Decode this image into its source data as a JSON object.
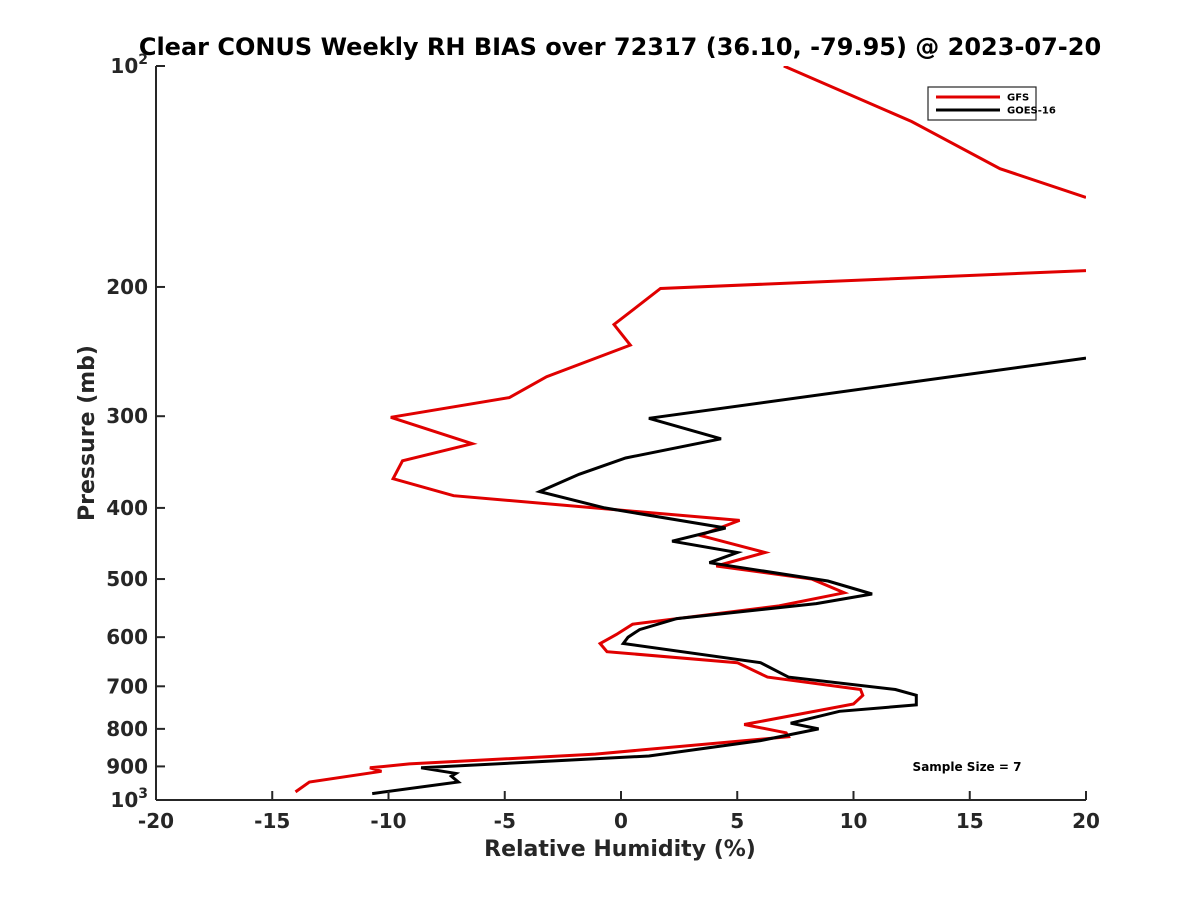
{
  "chart_data": {
    "type": "line",
    "title": "Clear CONUS Weekly RH BIAS over 72317 (36.10, -79.95) @ 2023-07-20",
    "xlabel": "Relative Humidity (%)",
    "ylabel": "Pressure (mb)",
    "xlim": [
      -20,
      20
    ],
    "ylim": [
      100,
      1000
    ],
    "y_scale": "log",
    "y_reversed": true,
    "grid": false,
    "legend_position": "top-right",
    "xticks": [
      "-20",
      "-15",
      "-10",
      "-5",
      "0",
      "5",
      "10",
      "15",
      "20"
    ],
    "yticks": [
      {
        "value": 100,
        "base": "10",
        "exp": "2"
      },
      {
        "value": 200,
        "label": "200"
      },
      {
        "value": 300,
        "label": "300"
      },
      {
        "value": 400,
        "label": "400"
      },
      {
        "value": 500,
        "label": "500"
      },
      {
        "value": 600,
        "label": "600"
      },
      {
        "value": 700,
        "label": "700"
      },
      {
        "value": 800,
        "label": "800"
      },
      {
        "value": 900,
        "label": "900"
      },
      {
        "value": 1000,
        "base": "10",
        "exp": "3"
      }
    ],
    "annotation": "Sample Size = 7",
    "series": [
      {
        "name": "GFS",
        "color": "#e00000",
        "x": [
          7.0,
          12.5,
          16.3,
          20.0,
          null,
          20.0,
          1.7,
          -0.3,
          0.4,
          -3.2,
          -4.8,
          -9.9,
          -6.4,
          -9.4,
          -9.8,
          -7.2,
          5.1,
          3.4,
          6.2,
          4.1,
          8.2,
          9.6,
          6.8,
          0.5,
          -0.2,
          -0.9,
          -0.6,
          5.0,
          6.3,
          10.3,
          10.4,
          10.0,
          5.3,
          7.1,
          7.2,
          -1.1,
          -9.1,
          -10.8,
          -10.3,
          -13.4,
          -14.0
        ],
        "y": [
          100,
          119,
          138,
          151,
          null,
          190,
          201,
          225,
          240,
          265,
          283,
          301,
          327,
          345,
          365,
          385,
          416,
          436,
          460,
          480,
          500,
          522,
          544,
          576,
          595,
          612,
          628,
          650,
          680,
          707,
          720,
          740,
          789,
          810,
          820,
          866,
          893,
          904,
          914,
          945,
          975
        ]
      },
      {
        "name": "GOES-16",
        "color": "#000000",
        "x": [
          20.0,
          1.2,
          4.3,
          0.2,
          -1.8,
          -3.5,
          -0.7,
          4.5,
          2.2,
          5.0,
          3.8,
          8.9,
          10.8,
          8.4,
          2.4,
          0.8,
          0.3,
          0.1,
          6.0,
          7.2,
          11.8,
          12.7,
          12.7,
          9.4,
          7.3,
          8.5,
          6.0,
          1.2,
          -8.6,
          -7.1,
          -7.3,
          -7.0,
          -10.7
        ],
        "y": [
          250,
          302,
          322,
          342,
          360,
          380,
          400,
          426,
          444,
          460,
          475,
          503,
          524,
          540,
          566,
          586,
          600,
          612,
          650,
          680,
          707,
          720,
          742,
          757,
          786,
          800,
          830,
          871,
          904,
          920,
          928,
          945,
          980
        ]
      }
    ]
  }
}
